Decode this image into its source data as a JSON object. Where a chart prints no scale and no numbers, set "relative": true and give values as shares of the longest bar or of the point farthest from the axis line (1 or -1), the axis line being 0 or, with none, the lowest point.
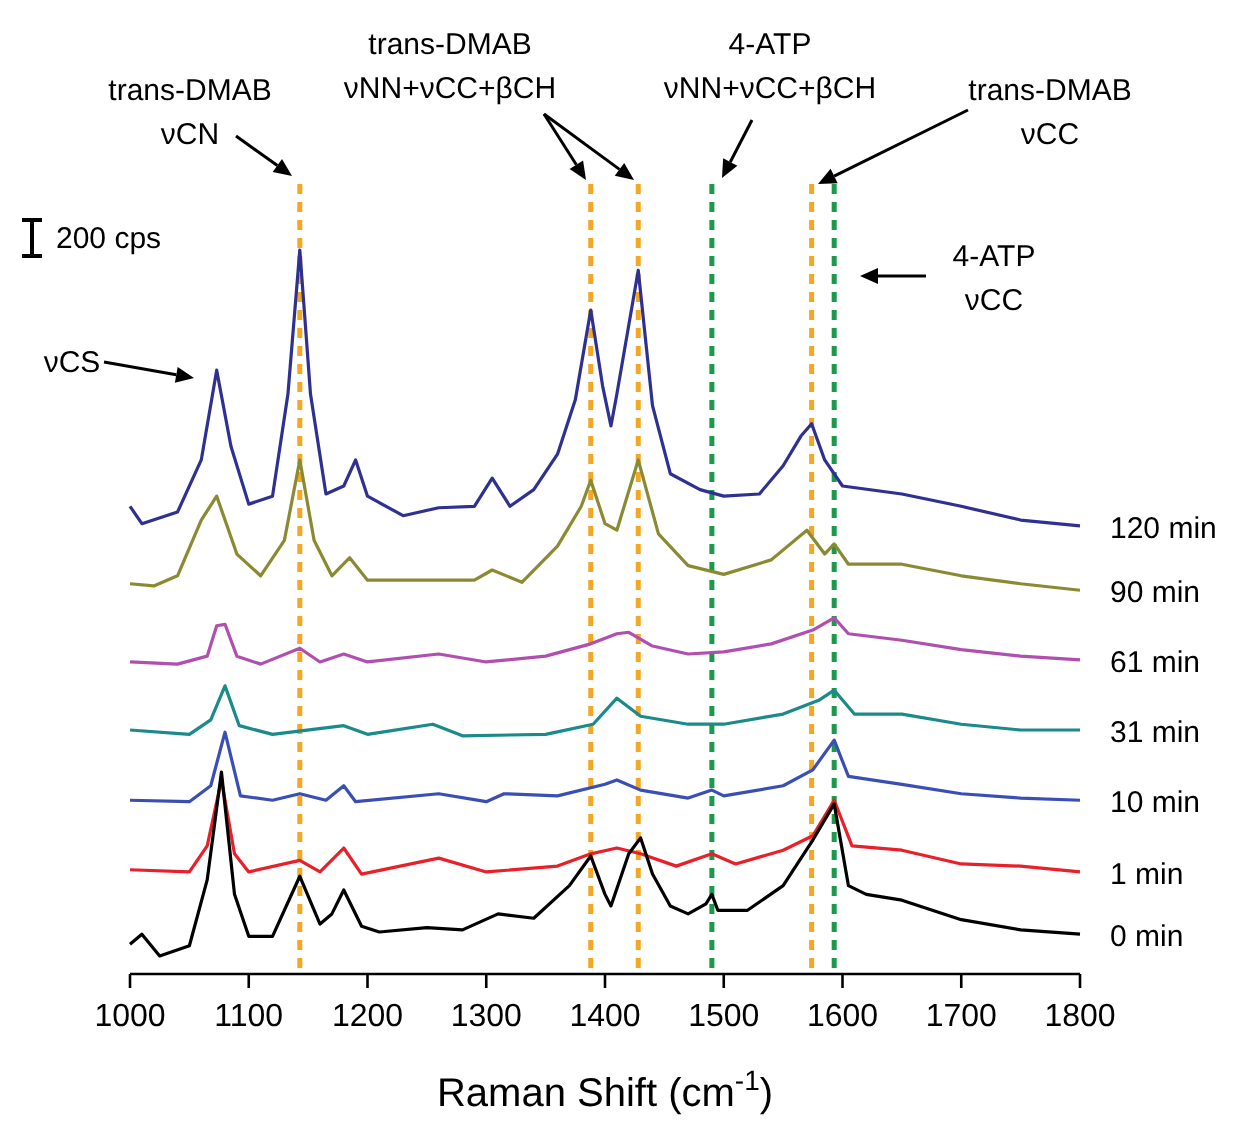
{
  "chart_data": {
    "type": "line",
    "relative": true,
    "xlabel": "Raman Shift (cm$^{-1}$)",
    "xlim": [
      1000,
      1800
    ],
    "xticks": [
      1000,
      1100,
      1200,
      1300,
      1400,
      1500,
      1600,
      1700,
      1800
    ],
    "grid": false,
    "marker": "none",
    "line_style": "solid",
    "series": [
      {
        "name": "120 min",
        "color": "#2e3192",
        "x": [
          1000,
          1010,
          1040,
          1060,
          1073,
          1085,
          1100,
          1120,
          1133,
          1143,
          1152,
          1165,
          1180,
          1190,
          1200,
          1230,
          1260,
          1290,
          1305,
          1320,
          1340,
          1360,
          1375,
          1388,
          1398,
          1405,
          1410,
          1428,
          1440,
          1455,
          1480,
          1500,
          1530,
          1550,
          1565,
          1574,
          1585,
          1600,
          1650,
          1700,
          1750,
          1800
        ],
        "values": [
          0.646,
          0.622,
          0.638,
          0.71,
          0.834,
          0.729,
          0.649,
          0.66,
          0.801,
          1,
          0.801,
          0.663,
          0.674,
          0.71,
          0.66,
          0.633,
          0.644,
          0.646,
          0.685,
          0.646,
          0.669,
          0.718,
          0.793,
          0.917,
          0.812,
          0.757,
          0.801,
          0.972,
          0.785,
          0.691,
          0.669,
          0.66,
          0.663,
          0.702,
          0.743,
          0.76,
          0.71,
          0.674,
          0.663,
          0.646,
          0.627,
          0.619
        ]
      },
      {
        "name": "90 min",
        "color": "#8a8a32",
        "x": [
          1000,
          1020,
          1040,
          1060,
          1073,
          1090,
          1110,
          1130,
          1143,
          1155,
          1170,
          1185,
          1200,
          1250,
          1290,
          1305,
          1330,
          1360,
          1380,
          1388,
          1400,
          1410,
          1428,
          1445,
          1470,
          1500,
          1540,
          1570,
          1585,
          1593,
          1605,
          1650,
          1700,
          1750,
          1800
        ],
        "values": [
          0.539,
          0.536,
          0.55,
          0.627,
          0.66,
          0.58,
          0.55,
          0.599,
          0.71,
          0.599,
          0.55,
          0.575,
          0.544,
          0.544,
          0.544,
          0.558,
          0.541,
          0.591,
          0.646,
          0.682,
          0.622,
          0.613,
          0.71,
          0.608,
          0.564,
          0.552,
          0.572,
          0.613,
          0.58,
          0.594,
          0.566,
          0.566,
          0.55,
          0.539,
          0.53
        ]
      },
      {
        "name": "61 min",
        "color": "#b04fb0",
        "x": [
          1000,
          1040,
          1065,
          1073,
          1080,
          1090,
          1110,
          1143,
          1160,
          1180,
          1200,
          1260,
          1300,
          1350,
          1388,
          1410,
          1420,
          1440,
          1470,
          1500,
          1540,
          1575,
          1593,
          1605,
          1650,
          1700,
          1750,
          1800
        ],
        "values": [
          0.431,
          0.428,
          0.439,
          0.481,
          0.483,
          0.439,
          0.428,
          0.45,
          0.431,
          0.442,
          0.431,
          0.442,
          0.431,
          0.439,
          0.456,
          0.47,
          0.472,
          0.453,
          0.442,
          0.445,
          0.456,
          0.475,
          0.492,
          0.47,
          0.461,
          0.448,
          0.439,
          0.434
        ]
      },
      {
        "name": "31 min",
        "color": "#1a8a8a",
        "x": [
          1000,
          1050,
          1068,
          1080,
          1092,
          1120,
          1180,
          1200,
          1255,
          1280,
          1350,
          1390,
          1410,
          1430,
          1470,
          1500,
          1550,
          1580,
          1593,
          1610,
          1650,
          1700,
          1750,
          1800
        ],
        "values": [
          0.337,
          0.331,
          0.351,
          0.398,
          0.343,
          0.331,
          0.343,
          0.331,
          0.345,
          0.329,
          0.331,
          0.345,
          0.381,
          0.356,
          0.345,
          0.345,
          0.359,
          0.378,
          0.392,
          0.359,
          0.359,
          0.345,
          0.337,
          0.337
        ]
      },
      {
        "name": "10 min",
        "color": "#3a4fb5",
        "x": [
          1000,
          1050,
          1068,
          1080,
          1093,
          1120,
          1143,
          1165,
          1180,
          1190,
          1260,
          1300,
          1315,
          1360,
          1400,
          1410,
          1430,
          1470,
          1490,
          1500,
          1550,
          1575,
          1593,
          1605,
          1650,
          1700,
          1750,
          1800
        ],
        "values": [
          0.24,
          0.238,
          0.26,
          0.334,
          0.246,
          0.24,
          0.249,
          0.24,
          0.26,
          0.238,
          0.249,
          0.238,
          0.249,
          0.246,
          0.262,
          0.268,
          0.254,
          0.243,
          0.254,
          0.246,
          0.26,
          0.282,
          0.323,
          0.273,
          0.262,
          0.249,
          0.243,
          0.24
        ]
      },
      {
        "name": "1 min",
        "color": "#e8202a",
        "x": [
          1000,
          1050,
          1065,
          1077,
          1088,
          1100,
          1143,
          1160,
          1180,
          1195,
          1260,
          1300,
          1360,
          1388,
          1410,
          1430,
          1460,
          1490,
          1510,
          1550,
          1575,
          1593,
          1608,
          1650,
          1700,
          1750,
          1800
        ],
        "values": [
          0.144,
          0.141,
          0.177,
          0.268,
          0.166,
          0.141,
          0.157,
          0.141,
          0.174,
          0.138,
          0.16,
          0.141,
          0.149,
          0.166,
          0.174,
          0.166,
          0.149,
          0.166,
          0.152,
          0.171,
          0.191,
          0.24,
          0.177,
          0.171,
          0.152,
          0.149,
          0.141
        ]
      },
      {
        "name": "0 min",
        "color": "#000000",
        "x": [
          1000,
          1010,
          1025,
          1050,
          1065,
          1077,
          1088,
          1100,
          1120,
          1143,
          1160,
          1170,
          1180,
          1195,
          1210,
          1250,
          1280,
          1310,
          1340,
          1370,
          1388,
          1400,
          1405,
          1420,
          1430,
          1440,
          1455,
          1470,
          1485,
          1490,
          1495,
          1520,
          1550,
          1575,
          1593,
          1605,
          1620,
          1650,
          1700,
          1750,
          1800
        ],
        "values": [
          0.041,
          0.055,
          0.025,
          0.039,
          0.13,
          0.279,
          0.11,
          0.052,
          0.052,
          0.135,
          0.069,
          0.083,
          0.116,
          0.066,
          0.058,
          0.064,
          0.061,
          0.083,
          0.077,
          0.122,
          0.163,
          0.11,
          0.094,
          0.166,
          0.188,
          0.138,
          0.094,
          0.083,
          0.097,
          0.11,
          0.088,
          0.088,
          0.122,
          0.185,
          0.235,
          0.122,
          0.11,
          0.102,
          0.075,
          0.061,
          0.055
        ]
      }
    ],
    "ref_lines": [
      {
        "axis": "x",
        "value": 1143,
        "label": null,
        "color": "#f5a623",
        "line_style": "dashed"
      },
      {
        "axis": "x",
        "value": 1388,
        "label": null,
        "color": "#f5a623",
        "line_style": "dashed"
      },
      {
        "axis": "x",
        "value": 1428,
        "label": null,
        "color": "#f5a623",
        "line_style": "dashed"
      },
      {
        "axis": "x",
        "value": 1490,
        "label": null,
        "color": "#1a9a4a",
        "line_style": "dashed"
      },
      {
        "axis": "x",
        "value": 1574,
        "label": null,
        "color": "#f5a623",
        "line_style": "dashed"
      },
      {
        "axis": "x",
        "value": 1593,
        "label": null,
        "color": "#1a9a4a",
        "line_style": "dashed"
      }
    ],
    "annotations": [
      "trans-DMAB\nνCN",
      "trans-DMAB\nνNN+νCC+βCH",
      "4-ATP\nνNN+νCC+βCH",
      "trans-DMAB\nνCC",
      "4-ATP\nνCC",
      "νCS",
      "200 cps"
    ]
  }
}
